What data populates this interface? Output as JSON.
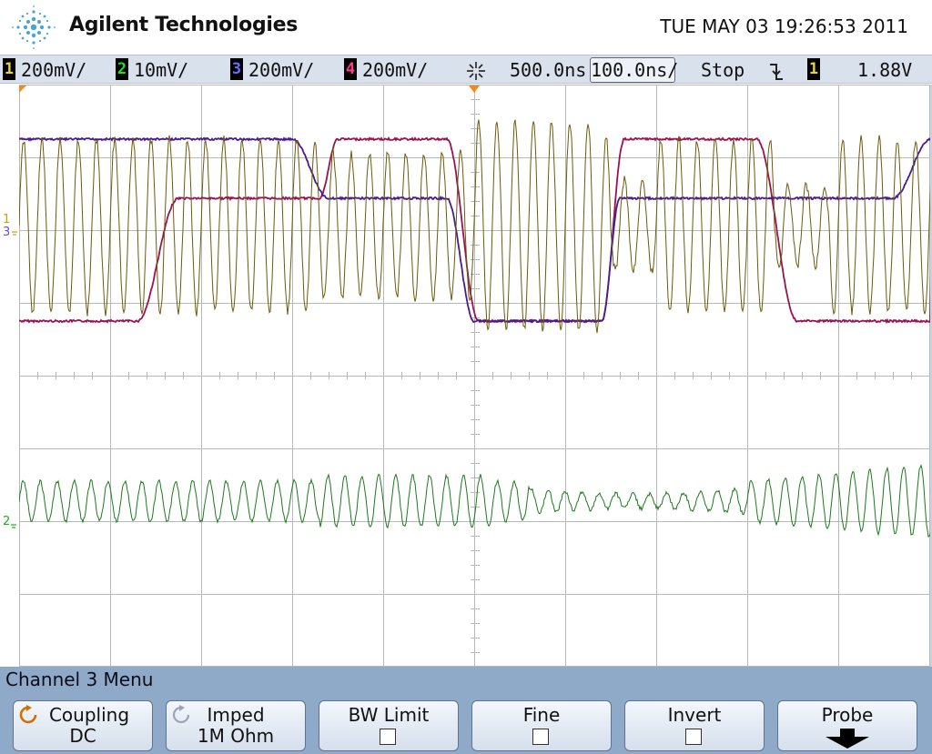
{
  "header": {
    "brand": "Agilent Technologies",
    "datetime": "TUE MAY 03 19:26:53 2011",
    "logo_icon": "spark-logo-icon"
  },
  "status_bar": {
    "channels": [
      {
        "number": "1",
        "scale": "200mV/",
        "color": "#e9d32c"
      },
      {
        "number": "2",
        "scale": "10mV/",
        "color": "#22dd22"
      },
      {
        "number": "3",
        "scale": "200mV/",
        "color": "#5b5bff"
      },
      {
        "number": "4",
        "scale": "200mV/",
        "color": "#ff3c8a"
      }
    ],
    "delay_icon": "time-reference-icon",
    "delay": "500.0ns",
    "timebase": "100.0ns/",
    "run_state": "Stop",
    "trigger_icon": "falling-edge-trigger-icon",
    "trigger_channel": "1",
    "trigger_level": "1.88V"
  },
  "colors": {
    "ch1": "#6b5a0a",
    "ch2": "#1b7a1b",
    "ch3": "#4a1b8c",
    "ch4": "#9a1250",
    "grid": "#b8b8b8",
    "softkey_bar": "#8fa9c8"
  },
  "markers": {
    "ch1_ground": "1",
    "ch3_ground": "3",
    "ch2_ground": "2"
  },
  "menu": {
    "title": "Channel 3  Menu",
    "softkeys": [
      {
        "line1": "Coupling",
        "line2": "DC",
        "icon": "refresh-icon"
      },
      {
        "line1": "Imped",
        "line2": "1M Ohm",
        "icon": "refresh-icon"
      },
      {
        "line1": "BW Limit",
        "line2": "",
        "icon": "checkbox-icon"
      },
      {
        "line1": "Fine",
        "line2": "",
        "icon": "checkbox-icon"
      },
      {
        "line1": "Invert",
        "line2": "",
        "icon": "checkbox-icon"
      },
      {
        "line1": "Probe",
        "line2": "",
        "icon": "down-arrow-icon"
      }
    ]
  }
}
